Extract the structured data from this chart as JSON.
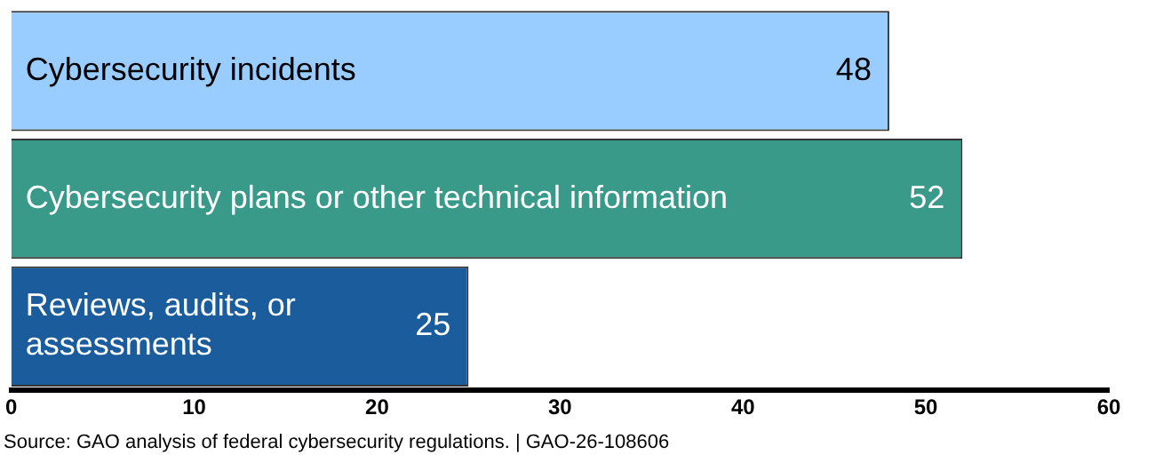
{
  "chart_data": {
    "type": "bar",
    "orientation": "horizontal",
    "categories": [
      "Cybersecurity incidents",
      "Cybersecurity plans or other technical information",
      "Reviews, audits, or assessments"
    ],
    "values": [
      48,
      52,
      25
    ],
    "colors": [
      "#99ccff",
      "#3a9a8a",
      "#1a5c9c"
    ],
    "data_labels": true,
    "xlim": [
      0,
      60
    ],
    "xticks": [
      0,
      10,
      20,
      30,
      40,
      50,
      60
    ],
    "grid": false,
    "legend": false,
    "annotations": [
      "Source: GAO analysis of federal cybersecurity regulations.  |  GAO-26-108606"
    ]
  }
}
